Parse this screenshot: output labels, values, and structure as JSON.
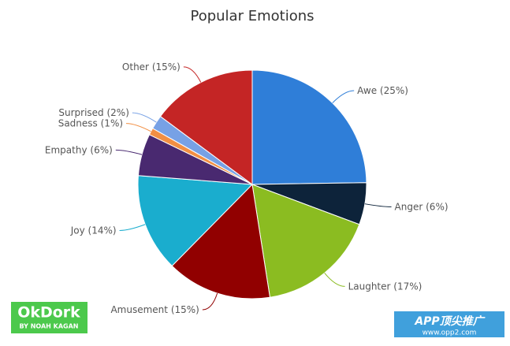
{
  "chart_data": {
    "type": "pie",
    "title": "Popular Emotions",
    "categories": [
      "Awe",
      "Anger",
      "Laughter",
      "Amusement",
      "Joy",
      "Empathy",
      "Sadness",
      "Surprised",
      "Other"
    ],
    "values": [
      25,
      6,
      17,
      15,
      14,
      6,
      1,
      2,
      15
    ],
    "value_labels": [
      "(25%)",
      "(6%)",
      "(17%)",
      "(15%)",
      "(14%)",
      "(6%)",
      "(1%)",
      "(2%)",
      "(15%)"
    ],
    "colors": [
      "#2f7ed8",
      "#0d233a",
      "#8bbc21",
      "#910000",
      "#1aadce",
      "#492970",
      "#f28f43",
      "#77a1e5",
      "#c42525"
    ]
  },
  "logo": {
    "name": "OkDork",
    "tagline": "BY NOAH KAGAN"
  },
  "watermark": {
    "name": "APP顶尖推广",
    "url": "www.opp2.com"
  }
}
